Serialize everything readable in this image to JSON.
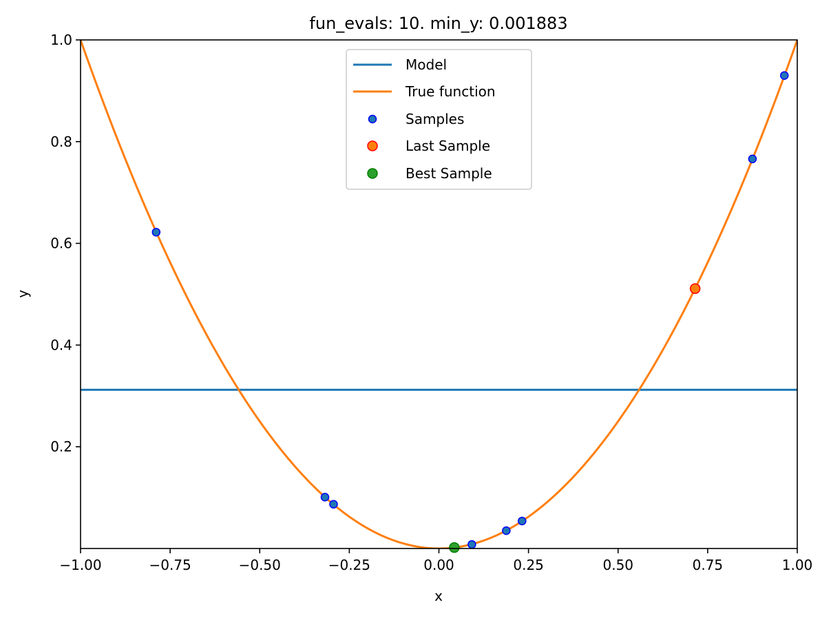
{
  "chart_data": {
    "type": "line",
    "title": "fun_evals: 10. min_y: 0.001883",
    "xlabel": "x",
    "ylabel": "y",
    "xlim": [
      -1.0,
      1.0
    ],
    "ylim": [
      0.0,
      1.0
    ],
    "grid": false,
    "legend_placement": "upper-center",
    "x_ticks": [
      {
        "value": -1.0,
        "label": "−1.00"
      },
      {
        "value": -0.75,
        "label": "−0.75"
      },
      {
        "value": -0.5,
        "label": "−0.50"
      },
      {
        "value": -0.25,
        "label": "−0.25"
      },
      {
        "value": 0.0,
        "label": "0.00"
      },
      {
        "value": 0.25,
        "label": "0.25"
      },
      {
        "value": 0.5,
        "label": "0.50"
      },
      {
        "value": 0.75,
        "label": "0.75"
      },
      {
        "value": 1.0,
        "label": "1.00"
      }
    ],
    "y_ticks": [
      {
        "value": 0.2,
        "label": "0.2"
      },
      {
        "value": 0.4,
        "label": "0.4"
      },
      {
        "value": 0.6,
        "label": "0.6"
      },
      {
        "value": 0.8,
        "label": "0.8"
      },
      {
        "value": 1.0,
        "label": "1.0"
      }
    ],
    "model": {
      "name": "Model",
      "color": "#1f77b4",
      "y": 0.312
    },
    "true_function": {
      "name": "True function",
      "color": "#ff7f0e",
      "expr": "x^2"
    },
    "samples": {
      "name": "Samples",
      "fill": "#1f77b4",
      "edge": "#0000ff",
      "points": [
        {
          "x": -0.789,
          "y": 0.622
        },
        {
          "x": -0.318,
          "y": 0.101
        },
        {
          "x": -0.294,
          "y": 0.087
        },
        {
          "x": 0.092,
          "y": 0.008
        },
        {
          "x": 0.188,
          "y": 0.035
        },
        {
          "x": 0.232,
          "y": 0.054
        },
        {
          "x": 0.715,
          "y": 0.511
        },
        {
          "x": 0.875,
          "y": 0.766
        },
        {
          "x": 0.964,
          "y": 0.93
        },
        {
          "x": 0.043,
          "y": 0.001883
        }
      ]
    },
    "last_sample": {
      "name": "Last Sample",
      "fill": "#ff7f0e",
      "edge": "#ff0000",
      "x": 0.715,
      "y": 0.511
    },
    "best_sample": {
      "name": "Best Sample",
      "fill": "#2ca02c",
      "edge": "#008000",
      "x": 0.043,
      "y": 0.001883
    }
  }
}
